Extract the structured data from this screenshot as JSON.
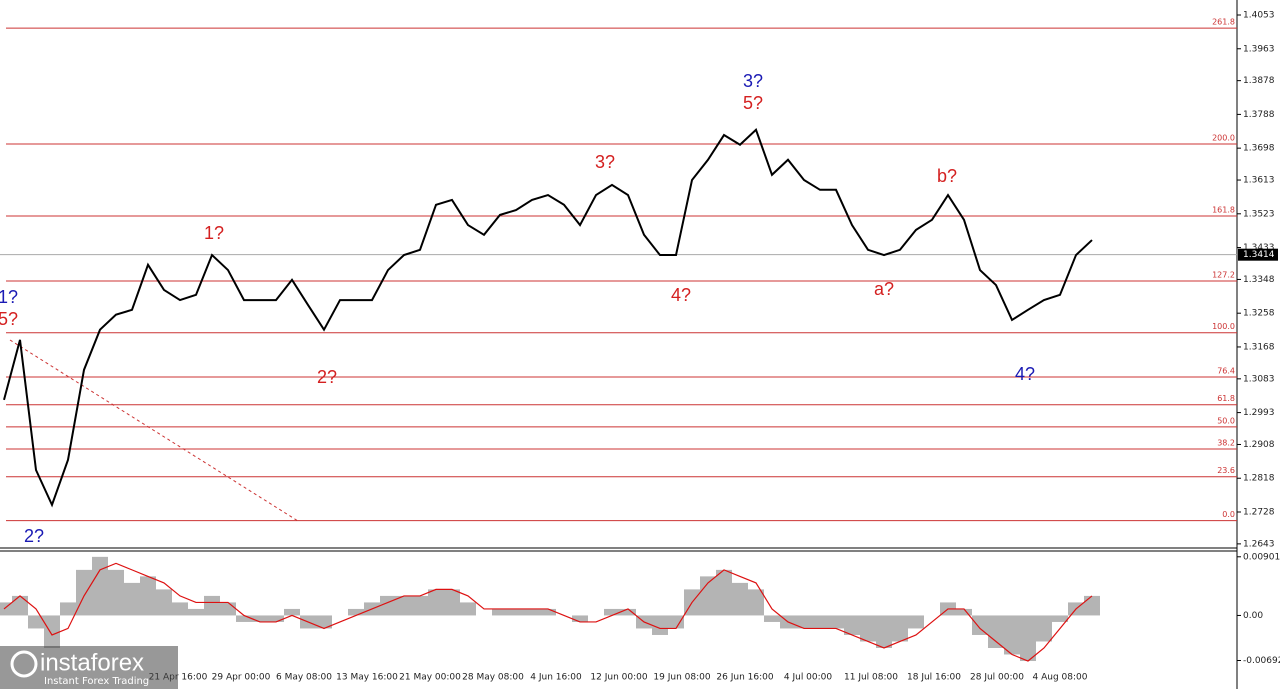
{
  "chart_data": [
    {
      "type": "price",
      "color": "#000000",
      "values": [
        1.3027,
        1.3187,
        1.284,
        1.2747,
        1.2867,
        1.3107,
        1.3214,
        1.3254,
        1.3267,
        1.3387,
        1.332,
        1.3293,
        1.3307,
        1.3413,
        1.3373,
        1.3293,
        1.3293,
        1.3293,
        1.3347,
        1.328,
        1.3214,
        1.3293,
        1.3293,
        1.3293,
        1.3373,
        1.3413,
        1.3427,
        1.3547,
        1.356,
        1.3493,
        1.3467,
        1.352,
        1.3533,
        1.356,
        1.3573,
        1.3547,
        1.3493,
        1.3573,
        1.36,
        1.3573,
        1.3467,
        1.3413,
        1.3413,
        1.3613,
        1.3667,
        1.3733,
        1.3707,
        1.3747,
        1.3627,
        1.3667,
        1.3613,
        1.3587,
        1.3587,
        1.3493,
        1.3427,
        1.3413,
        1.3427,
        1.348,
        1.3507,
        1.3573,
        1.3507,
        1.3373,
        1.3333,
        1.324,
        1.3267,
        1.3293,
        1.3307,
        1.3413,
        1.3453
      ],
      "ylim": [
        1.2632,
        1.4093
      ],
      "yticks": [
        1.4053,
        1.3963,
        1.3878,
        1.3788,
        1.3698,
        1.3613,
        1.3523,
        1.3433,
        1.3348,
        1.3258,
        1.3168,
        1.3083,
        1.2993,
        1.2908,
        1.2818,
        1.2728,
        1.2643
      ],
      "current_price": 1.3414,
      "x_tick_labels": [
        "21 Apr 16:00",
        "29 Apr 00:00",
        "6 May 08:00",
        "13 May 16:00",
        "21 May 00:00",
        "28 May 08:00",
        "4 Jun 16:00",
        "12 Jun 00:00",
        "19 Jun 08:00",
        "26 Jun 16:00",
        "4 Jul 00:00",
        "11 Jul 08:00",
        "18 Jul 16:00",
        "28 Jul 00:00",
        "4 Aug 08:00"
      ],
      "fib_color": "#cc3333",
      "fib_levels": [
        {
          "label": "261.8",
          "price": 1.4018
        },
        {
          "label": "200.0",
          "price": 1.3709
        },
        {
          "label": "161.8",
          "price": 1.3517
        },
        {
          "label": "127.2",
          "price": 1.3344
        },
        {
          "label": "100.0",
          "price": 1.3206
        },
        {
          "label": "76.4",
          "price": 1.3088
        },
        {
          "label": "61.8",
          "price": 1.3014
        },
        {
          "label": "50.0",
          "price": 1.2955
        },
        {
          "label": "38.2",
          "price": 1.2896
        },
        {
          "label": "23.6",
          "price": 1.2822
        },
        {
          "label": "0.0",
          "price": 1.2705
        }
      ],
      "annotations": [
        {
          "text": "1?",
          "color": "#1a1ab4"
        },
        {
          "text": "5?",
          "color": "#d42020"
        },
        {
          "text": "2?",
          "color": "#1a1ab4"
        },
        {
          "text": "1?",
          "color": "#d42020"
        },
        {
          "text": "2?",
          "color": "#d42020"
        },
        {
          "text": "3?",
          "color": "#d42020"
        },
        {
          "text": "4?",
          "color": "#d42020"
        },
        {
          "text": "3?",
          "color": "#1a1ab4"
        },
        {
          "text": "5?",
          "color": "#d42020"
        },
        {
          "text": "b?",
          "color": "#d42020"
        },
        {
          "text": "a?",
          "color": "#d42020"
        },
        {
          "text": "4?",
          "color": "#1a1ab4"
        }
      ]
    },
    {
      "type": "macd",
      "histogram": {
        "color": "#b4b4b4",
        "values": [
          0.002,
          0.003,
          -0.002,
          -0.005,
          0.002,
          0.007,
          0.009,
          0.007,
          0.005,
          0.006,
          0.004,
          0.002,
          0.001,
          0.003,
          0.002,
          -0.001,
          -0.001,
          -0.001,
          0.001,
          -0.002,
          -0.002,
          0,
          0.001,
          0.002,
          0.003,
          0.003,
          0.003,
          0.004,
          0.004,
          0.002,
          0,
          0.001,
          0.001,
          0.001,
          0.001,
          0,
          -0.001,
          0,
          0.001,
          0.001,
          -0.002,
          -0.003,
          -0.002,
          0.004,
          0.006,
          0.007,
          0.005,
          0.004,
          -0.001,
          -0.002,
          -0.002,
          -0.002,
          -0.002,
          -0.003,
          -0.004,
          -0.005,
          -0.004,
          -0.002,
          0,
          0.002,
          0.001,
          -0.003,
          -0.005,
          -0.006,
          -0.007,
          -0.004,
          -0.001,
          0.002,
          0.003
        ]
      },
      "signal": {
        "color": "#dd1111",
        "values": [
          0.001,
          0.003,
          0.001,
          -0.003,
          -0.002,
          0.003,
          0.007,
          0.008,
          0.007,
          0.006,
          0.005,
          0.003,
          0.002,
          0.002,
          0.002,
          0,
          -0.001,
          -0.001,
          0,
          -0.001,
          -0.002,
          -0.001,
          0,
          0.001,
          0.002,
          0.003,
          0.003,
          0.004,
          0.004,
          0.003,
          0.001,
          0.001,
          0.001,
          0.001,
          0.001,
          0,
          -0.001,
          -0.001,
          0,
          0.001,
          -0.001,
          -0.002,
          -0.002,
          0.002,
          0.005,
          0.007,
          0.006,
          0.005,
          0.001,
          -0.001,
          -0.002,
          -0.002,
          -0.002,
          -0.003,
          -0.004,
          -0.005,
          -0.004,
          -0.003,
          -0.001,
          0.001,
          0.001,
          -0.002,
          -0.004,
          -0.006,
          -0.007,
          -0.005,
          -0.002,
          0.001,
          0.003
        ]
      },
      "ylim": [
        -0.0113,
        0.0099
      ],
      "yticks": [
        0.00901,
        {
          "value": 0,
          "label": "0.00"
        },
        -0.00692
      ]
    }
  ],
  "watermark": {
    "brand": "instaforex",
    "tagline": "Instant Forex Trading"
  }
}
